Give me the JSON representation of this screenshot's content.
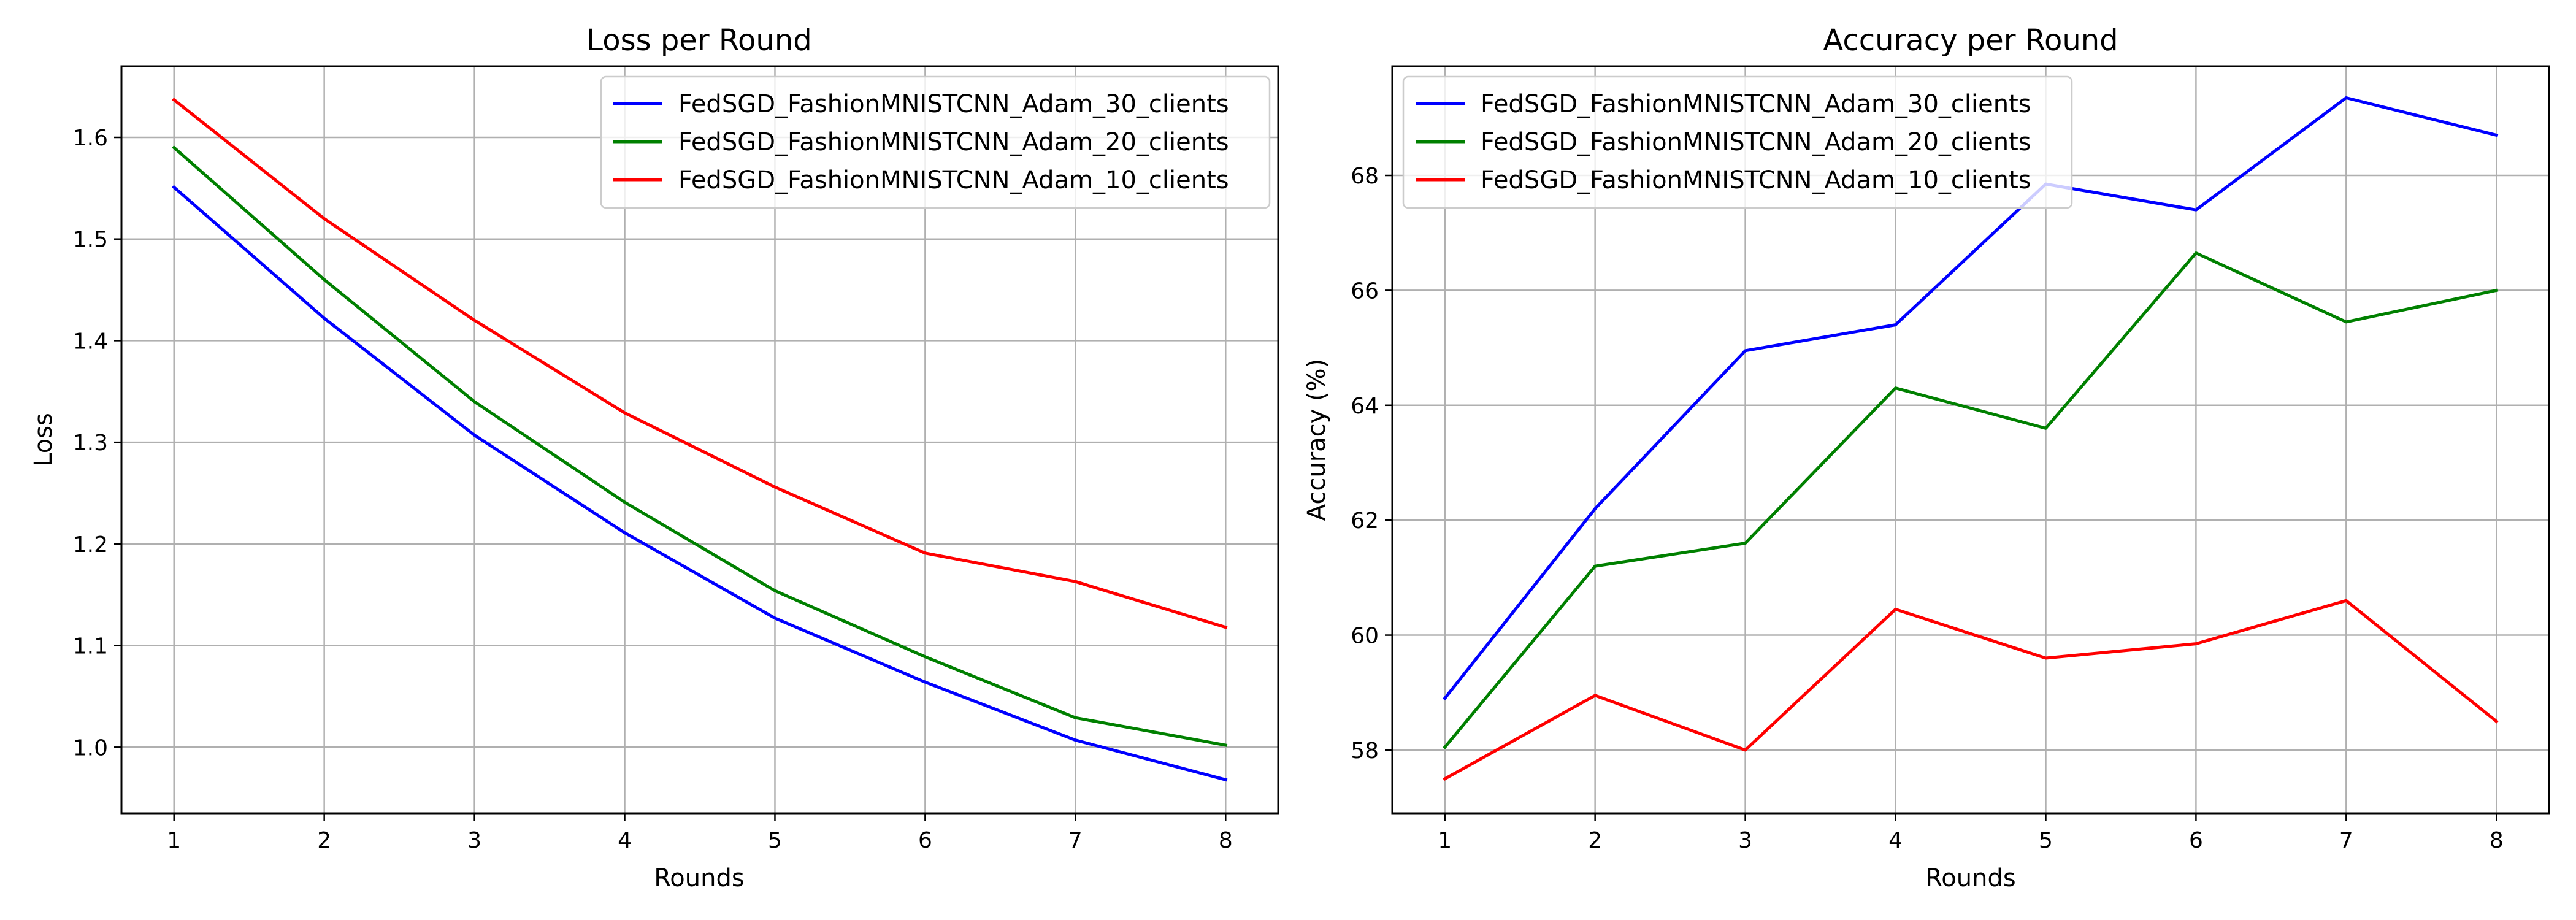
{
  "colors": {
    "FedSGD_FashionMNISTCNN_Adam_30_clients": "#0000ff",
    "FedSGD_FashionMNISTCNN_Adam_20_clients": "#008000",
    "FedSGD_FashionMNISTCNN_Adam_10_clients": "#ff0000"
  },
  "chart_data": [
    {
      "type": "line",
      "title": "Loss per Round",
      "xlabel": "Rounds",
      "ylabel": "Loss",
      "x": [
        1,
        2,
        3,
        4,
        5,
        6,
        7,
        8
      ],
      "xlim": [
        0.65,
        8.35
      ],
      "ylim": [
        0.935,
        1.67
      ],
      "xticks": [
        1,
        2,
        3,
        4,
        5,
        6,
        7,
        8
      ],
      "yticks": [
        1.0,
        1.1,
        1.2,
        1.3,
        1.4,
        1.5,
        1.6
      ],
      "ytick_labels": [
        "1.0",
        "1.1",
        "1.2",
        "1.3",
        "1.4",
        "1.5",
        "1.6"
      ],
      "grid": true,
      "legend_loc": "top-right",
      "series": [
        {
          "name": "FedSGD_FashionMNISTCNN_Adam_30_clients",
          "values": [
            1.551,
            1.422,
            1.307,
            1.211,
            1.127,
            1.064,
            1.007,
            0.968
          ]
        },
        {
          "name": "FedSGD_FashionMNISTCNN_Adam_20_clients",
          "values": [
            1.59,
            1.46,
            1.34,
            1.241,
            1.154,
            1.089,
            1.029,
            1.002
          ]
        },
        {
          "name": "FedSGD_FashionMNISTCNN_Adam_10_clients",
          "values": [
            1.637,
            1.52,
            1.42,
            1.329,
            1.256,
            1.191,
            1.163,
            1.118
          ]
        }
      ]
    },
    {
      "type": "line",
      "title": "Accuracy per Round",
      "xlabel": "Rounds",
      "ylabel": "Accuracy (%)",
      "x": [
        1,
        2,
        3,
        4,
        5,
        6,
        7,
        8
      ],
      "xlim": [
        0.65,
        8.35
      ],
      "ylim": [
        56.9,
        69.9
      ],
      "xticks": [
        1,
        2,
        3,
        4,
        5,
        6,
        7,
        8
      ],
      "yticks": [
        58,
        60,
        62,
        64,
        66,
        68
      ],
      "ytick_labels": [
        "58",
        "60",
        "62",
        "64",
        "66",
        "68"
      ],
      "grid": true,
      "legend_loc": "top-left",
      "series": [
        {
          "name": "FedSGD_FashionMNISTCNN_Adam_30_clients",
          "values": [
            58.9,
            62.2,
            64.95,
            65.4,
            67.85,
            67.4,
            69.35,
            68.7
          ]
        },
        {
          "name": "FedSGD_FashionMNISTCNN_Adam_20_clients",
          "values": [
            58.05,
            61.2,
            61.6,
            64.3,
            63.6,
            66.65,
            65.45,
            66.0
          ]
        },
        {
          "name": "FedSGD_FashionMNISTCNN_Adam_10_clients",
          "values": [
            57.5,
            58.95,
            58.0,
            60.45,
            59.6,
            59.85,
            60.6,
            58.5
          ]
        }
      ]
    }
  ]
}
